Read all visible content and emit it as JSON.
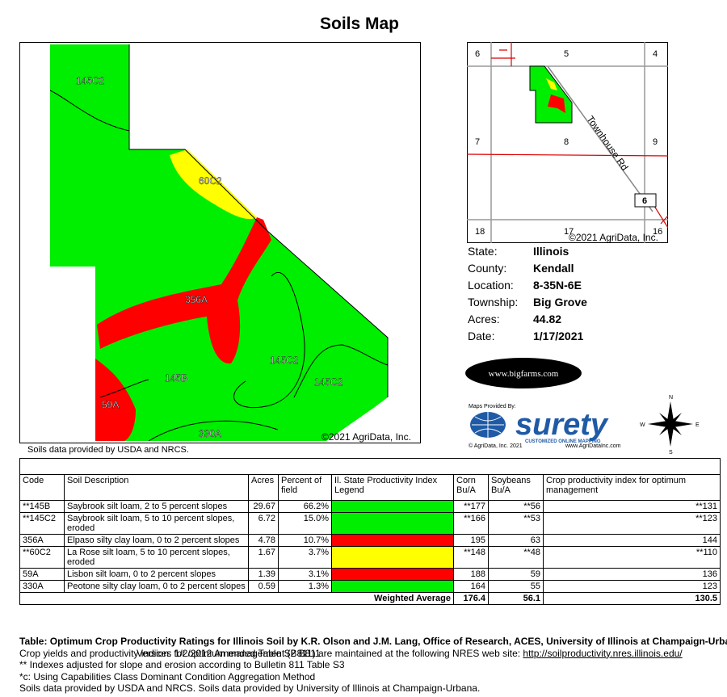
{
  "title": "Soils Map",
  "map": {
    "labels": [
      "145C2",
      "60C2",
      "356A",
      "145C2",
      "145C2",
      "145B",
      "59A",
      "330A"
    ],
    "copyright": "©2021 AgriData, Inc.",
    "note": "Soils data provided by USDA and NRCS."
  },
  "locator": {
    "sections": [
      "6",
      "5",
      "4",
      "7",
      "8",
      "9",
      "18",
      "17",
      "16"
    ],
    "road": "Townhouse Rd",
    "route": "6",
    "copyright": "©2021 AgriData, Inc."
  },
  "info": [
    [
      "State:",
      "Illinois"
    ],
    [
      "County:",
      "Kendall"
    ],
    [
      "Location:",
      "8-35N-6E"
    ],
    [
      "Township:",
      "Big Grove"
    ],
    [
      "Acres:",
      "44.82"
    ],
    [
      "Date:",
      "1/17/2021"
    ]
  ],
  "logos": {
    "bigfarms": "www.bigfarms.com",
    "provided": "Maps Provided By:",
    "surety": "surety",
    "tagline": "CUSTOMIZED ONLINE MAPPING",
    "agridata": "© AgriData, Inc. 2021",
    "site": "www.AgriDataInc.com",
    "compass": [
      "N",
      "E",
      "S",
      "W"
    ]
  },
  "table": {
    "headers": [
      "Code",
      "Soil Description",
      "Acres",
      "Percent of field",
      "Il. State Productivity Index Legend",
      "Corn Bu/A",
      "Soybeans Bu/A",
      "Crop productivity index for optimum management"
    ],
    "rows": [
      {
        "code": "**145B",
        "description": "Saybrook silt loam, 2 to 5 percent slopes",
        "acres": "29.67",
        "percent": "66.2%",
        "color": "#00ee00",
        "corn": "**177",
        "soybeans": "**56",
        "cpi": "**131"
      },
      {
        "code": "**145C2",
        "description": "Saybrook silt loam, 5 to 10 percent slopes, eroded",
        "acres": "6.72",
        "percent": "15.0%",
        "color": "#00ee00",
        "corn": "**166",
        "soybeans": "**53",
        "cpi": "**123"
      },
      {
        "code": "356A",
        "description": "Elpaso silty clay loam, 0 to 2 percent slopes",
        "acres": "4.78",
        "percent": "10.7%",
        "color": "#ff0000",
        "corn": "195",
        "soybeans": "63",
        "cpi": "144"
      },
      {
        "code": "**60C2",
        "description": "La Rose silt loam, 5 to 10 percent slopes, eroded",
        "acres": "1.67",
        "percent": "3.7%",
        "color": "#ffff00",
        "corn": "**148",
        "soybeans": "**48",
        "cpi": "**110"
      },
      {
        "code": "59A",
        "description": "Lisbon silt loam, 0 to 2 percent slopes",
        "acres": "1.39",
        "percent": "3.1%",
        "color": "#ff0000",
        "corn": "188",
        "soybeans": "59",
        "cpi": "136"
      },
      {
        "code": "330A",
        "description": "Peotone silty clay loam, 0 to 2 percent slopes",
        "acres": "0.59",
        "percent": "1.3%",
        "color": "#00ee00",
        "corn": "164",
        "soybeans": "55",
        "cpi": "123"
      }
    ],
    "weighted": {
      "label": "Weighted Average",
      "corn": "176.4",
      "soybeans": "56.1",
      "cpi": "130.5"
    }
  },
  "footer": {
    "source_bold": "Table: Optimum Crop Productivity Ratings for Illinois Soil by K.R. Olson and J.M. Lang, Office of Research, ACES, University of Illinois at Champaign-Urbana.",
    "version": " Version: 1/2/2012 Amended Table S2 B811",
    "b811": "Crop yields and productivity indices for optimum management (B811) are maintained at the following NRES web site: ",
    "url": "http://soilproductivity.nres.illinois.edu/",
    "adjusted": "** Indexes adjusted for slope and erosion according to Bulletin 811 Table S3",
    "method": "*c: Using Capabilities Class Dominant Condition Aggregation Method",
    "sources": "Soils data provided by USDA and NRCS. Soils data provided by University of Illinois at Champaign-Urbana."
  }
}
